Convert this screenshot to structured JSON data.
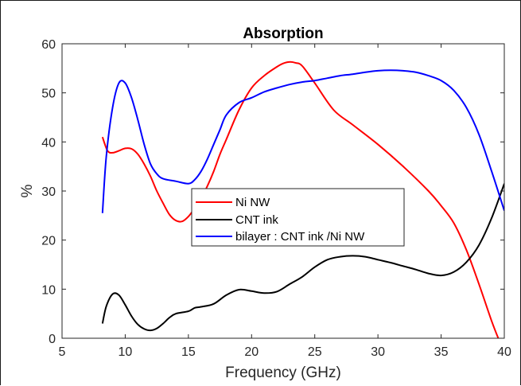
{
  "chart_data": {
    "type": "line",
    "title": "Absorption",
    "xlabel": "Frequency (GHz)",
    "ylabel": "%",
    "xlim": [
      5,
      40
    ],
    "ylim": [
      0,
      60
    ],
    "xticks": [
      5,
      10,
      15,
      20,
      25,
      30,
      35,
      40
    ],
    "yticks": [
      0,
      10,
      20,
      30,
      40,
      50,
      60
    ],
    "grid": false,
    "legend_position": "center",
    "series": [
      {
        "name": "Ni NW",
        "color": "#ff0000",
        "x": [
          8.2,
          8.6,
          9.0,
          9.5,
          10.0,
          10.5,
          11.0,
          11.5,
          12.0,
          12.5,
          13.0,
          13.5,
          14.0,
          14.5,
          15.0,
          15.5,
          16.0,
          16.5,
          17.0,
          17.5,
          18.0,
          19.0,
          20.0,
          21.0,
          22.0,
          22.5,
          23.0,
          23.5,
          24.0,
          25.0,
          26.5,
          28.0,
          30.0,
          32.0,
          34.0,
          35.0,
          36.0,
          37.0,
          38.0,
          39.0,
          39.6
        ],
        "y": [
          41.0,
          38.2,
          37.8,
          38.2,
          38.7,
          38.6,
          37.5,
          35.5,
          33.0,
          30.0,
          27.5,
          25.2,
          24.0,
          23.8,
          24.8,
          26.5,
          28.5,
          31.0,
          34.0,
          37.5,
          40.5,
          46.5,
          51.0,
          53.5,
          55.3,
          56.0,
          56.3,
          56.1,
          55.5,
          52.0,
          46.5,
          43.5,
          39.5,
          35.0,
          30.0,
          27.0,
          23.5,
          18.0,
          11.0,
          3.5,
          -0.5
        ]
      },
      {
        "name": "CNT ink",
        "color": "#000000",
        "x": [
          8.2,
          8.5,
          9.0,
          9.5,
          10.0,
          10.5,
          11.0,
          11.5,
          12.0,
          12.5,
          13.0,
          13.5,
          14.0,
          15.0,
          15.5,
          16.0,
          17.0,
          18.0,
          19.0,
          20.0,
          21.0,
          22.0,
          23.0,
          24.0,
          25.0,
          26.0,
          27.0,
          28.0,
          29.0,
          30.0,
          31.0,
          32.0,
          33.0,
          34.0,
          35.0,
          36.0,
          37.0,
          38.0,
          39.0,
          40.0
        ],
        "y": [
          3.0,
          6.5,
          9.0,
          8.8,
          6.8,
          4.5,
          2.8,
          1.9,
          1.6,
          2.0,
          3.0,
          4.2,
          5.0,
          5.5,
          6.2,
          6.4,
          7.0,
          8.8,
          9.9,
          9.6,
          9.2,
          9.5,
          11.0,
          12.5,
          14.5,
          16.0,
          16.6,
          16.8,
          16.6,
          16.0,
          15.4,
          14.7,
          14.0,
          13.2,
          12.8,
          13.5,
          15.5,
          19.0,
          24.5,
          31.5
        ]
      },
      {
        "name": "bilayer : CNT ink /Ni NW",
        "color": "#0000ff",
        "x": [
          8.2,
          8.5,
          9.0,
          9.5,
          10.0,
          10.5,
          11.0,
          11.5,
          12.0,
          12.5,
          13.0,
          14.0,
          15.0,
          15.5,
          16.0,
          16.5,
          17.0,
          17.5,
          18.0,
          19.0,
          20.0,
          21.0,
          22.0,
          23.0,
          24.0,
          25.0,
          26.0,
          27.0,
          28.0,
          29.0,
          30.0,
          31.0,
          32.0,
          33.0,
          34.0,
          35.0,
          36.0,
          37.0,
          38.0,
          39.0,
          40.0
        ],
        "y": [
          25.5,
          37.0,
          47.0,
          52.0,
          52.0,
          49.0,
          44.5,
          39.5,
          35.5,
          33.5,
          32.5,
          32.0,
          31.5,
          32.3,
          34.0,
          36.5,
          39.5,
          42.5,
          45.5,
          48.0,
          49.0,
          50.2,
          51.0,
          51.7,
          52.2,
          52.5,
          53.0,
          53.5,
          53.8,
          54.2,
          54.5,
          54.6,
          54.5,
          54.2,
          53.5,
          52.5,
          50.5,
          47.0,
          41.5,
          34.0,
          26.0
        ]
      }
    ]
  }
}
